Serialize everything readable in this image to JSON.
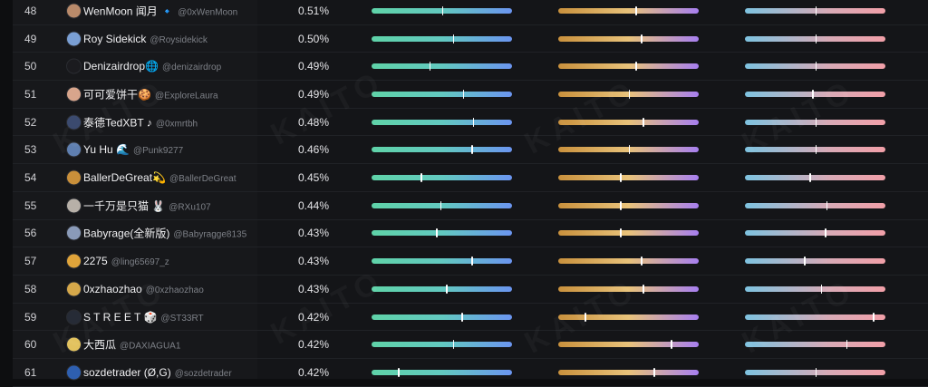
{
  "leaderboard": {
    "rows": [
      {
        "rank": "48",
        "name": "WenMoon 闻月 🔹",
        "handle": "@0xWenMoon",
        "share": "0.51%",
        "avatar_color": "#b98a6a",
        "bars": [
          0.5,
          0.55,
          0.5
        ]
      },
      {
        "rank": "49",
        "name": "Roy Sidekick",
        "handle": "@Roysidekick",
        "share": "0.50%",
        "avatar_color": "#7a9fd4",
        "bars": [
          0.58,
          0.59,
          0.5
        ]
      },
      {
        "rank": "50",
        "name": "Denizairdrop🌐",
        "handle": "@denizairdrop",
        "share": "0.49%",
        "avatar_color": "#1b1b1f",
        "bars": [
          0.41,
          0.55,
          0.5
        ]
      },
      {
        "rank": "51",
        "name": "可可爱饼干🍪",
        "handle": "@ExploreLaura",
        "share": "0.49%",
        "avatar_color": "#d8a58c",
        "bars": [
          0.65,
          0.5,
          0.48
        ]
      },
      {
        "rank": "52",
        "name": "泰德TedXBT ♪",
        "handle": "@0xmrtbh",
        "share": "0.48%",
        "avatar_color": "#3b4a6e",
        "bars": [
          0.72,
          0.6,
          0.5
        ]
      },
      {
        "rank": "53",
        "name": "Yu Hu 🌊",
        "handle": "@Punk9277",
        "share": "0.46%",
        "avatar_color": "#5f7fb0",
        "bars": [
          0.71,
          0.5,
          0.5
        ]
      },
      {
        "rank": "54",
        "name": "BallerDeGreat💫",
        "handle": "@BallerDeGreat",
        "share": "0.45%",
        "avatar_color": "#c98f3a",
        "bars": [
          0.35,
          0.44,
          0.46
        ]
      },
      {
        "rank": "55",
        "name": "一千万是只猫 🐰",
        "handle": "@RXu107",
        "share": "0.44%",
        "avatar_color": "#b7b0a8",
        "bars": [
          0.49,
          0.44,
          0.58
        ]
      },
      {
        "rank": "56",
        "name": "Babyrage(全新版)",
        "handle": "@Babyragge8135",
        "share": "0.43%",
        "avatar_color": "#8a9ab8",
        "bars": [
          0.46,
          0.44,
          0.57
        ]
      },
      {
        "rank": "57",
        "name": "2275",
        "handle": "@ling65697_z",
        "share": "0.43%",
        "avatar_color": "#e0a43a",
        "bars": [
          0.71,
          0.59,
          0.42
        ]
      },
      {
        "rank": "58",
        "name": "0xzhaozhao",
        "handle": "@0xzhaozhao",
        "share": "0.43%",
        "avatar_color": "#d6a84a",
        "bars": [
          0.53,
          0.6,
          0.54
        ]
      },
      {
        "rank": "59",
        "name": "S T R E E T 🎲",
        "handle": "@ST33RT",
        "share": "0.42%",
        "avatar_color": "#262b36",
        "bars": [
          0.64,
          0.19,
          0.91
        ]
      },
      {
        "rank": "60",
        "name": "大西瓜",
        "handle": "@DAXIAGUA1",
        "share": "0.42%",
        "avatar_color": "#e2c25e",
        "bars": [
          0.58,
          0.8,
          0.72
        ]
      },
      {
        "rank": "61",
        "name": "sozdetrader (Ø,G)",
        "handle": "@sozdetrader",
        "share": "0.42%",
        "avatar_color": "#2e5fb0",
        "bars": [
          0.19,
          0.68,
          0.5
        ]
      }
    ]
  },
  "watermark_text": "KAITO"
}
